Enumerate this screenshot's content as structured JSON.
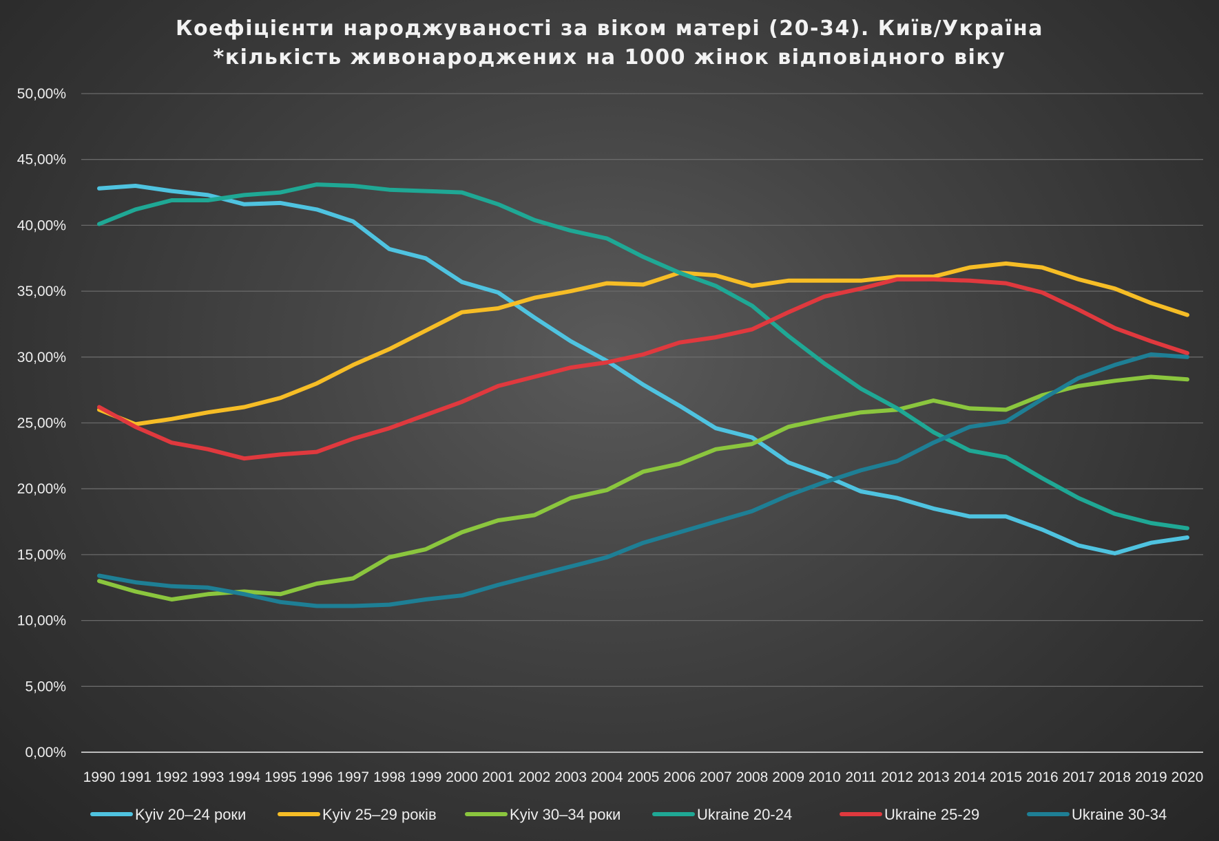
{
  "chart_data": {
    "type": "line",
    "title": "Коефіцієнти народжуваності за віком матері (20-34). Київ/Україна",
    "subtitle": "*кількість живонароджених на 1000 жінок відповідного віку",
    "xlabel": "",
    "ylabel": "",
    "ylim": [
      0,
      50
    ],
    "y_ticks": [
      "0,00%",
      "5,00%",
      "10,00%",
      "15,00%",
      "20,00%",
      "25,00%",
      "30,00%",
      "35,00%",
      "40,00%",
      "45,00%",
      "50,00%"
    ],
    "grid": true,
    "legend_position": "bottom",
    "categories": [
      "1990",
      "1991",
      "1992",
      "1993",
      "1994",
      "1995",
      "1996",
      "1997",
      "1998",
      "1999",
      "2000",
      "2001",
      "2002",
      "2003",
      "2004",
      "2005",
      "2006",
      "2007",
      "2008",
      "2009",
      "2010",
      "2011",
      "2012",
      "2013",
      "2014",
      "2015",
      "2016",
      "2017",
      "2018",
      "2019",
      "2020"
    ],
    "series": [
      {
        "name": "Kyiv 20–24 роки",
        "color": "#4fc3e0",
        "values": [
          42.8,
          43.0,
          42.6,
          42.3,
          41.6,
          41.7,
          41.2,
          40.3,
          38.2,
          37.5,
          35.7,
          34.9,
          33.0,
          31.2,
          29.7,
          27.9,
          26.3,
          24.6,
          23.9,
          22.0,
          21.0,
          19.8,
          19.3,
          18.5,
          17.9,
          17.9,
          16.9,
          15.7,
          15.1,
          15.9,
          16.3
        ]
      },
      {
        "name": "Kyiv 25–29 років",
        "color": "#f6bd26",
        "values": [
          26.0,
          24.9,
          25.3,
          25.8,
          26.2,
          26.9,
          28.0,
          29.4,
          30.6,
          32.0,
          33.4,
          33.7,
          34.5,
          35.0,
          35.6,
          35.5,
          36.4,
          36.2,
          35.4,
          35.8,
          35.8,
          35.8,
          36.1,
          36.1,
          36.8,
          37.1,
          36.8,
          35.9,
          35.2,
          34.1,
          33.2
        ]
      },
      {
        "name": "Kyiv 30–34 роки",
        "color": "#8bc63e",
        "values": [
          13.0,
          12.2,
          11.6,
          12.0,
          12.2,
          12.0,
          12.8,
          13.2,
          14.8,
          15.4,
          16.7,
          17.6,
          18.0,
          19.3,
          19.9,
          21.3,
          21.9,
          23.0,
          23.4,
          24.7,
          25.3,
          25.8,
          26.0,
          26.7,
          26.1,
          26.0,
          27.1,
          27.8,
          28.2,
          28.5,
          28.3
        ]
      },
      {
        "name": "Ukraine 20-24",
        "color": "#1fa895",
        "values": [
          40.1,
          41.2,
          41.9,
          41.9,
          42.3,
          42.5,
          43.1,
          43.0,
          42.7,
          42.6,
          42.5,
          41.6,
          40.4,
          39.6,
          39.0,
          37.6,
          36.4,
          35.4,
          33.9,
          31.6,
          29.5,
          27.6,
          26.1,
          24.3,
          22.9,
          22.4,
          20.8,
          19.3,
          18.1,
          17.4,
          17.0
        ]
      },
      {
        "name": "Ukraine 25-29",
        "color": "#e0393e",
        "values": [
          26.2,
          24.7,
          23.5,
          23.0,
          22.3,
          22.6,
          22.8,
          23.8,
          24.6,
          25.6,
          26.6,
          27.8,
          28.5,
          29.2,
          29.6,
          30.2,
          31.1,
          31.5,
          32.1,
          33.4,
          34.6,
          35.2,
          35.9,
          35.9,
          35.8,
          35.6,
          34.9,
          33.6,
          32.2,
          31.2,
          30.3
        ]
      },
      {
        "name": "Ukraine 30-34",
        "color": "#1e7f95",
        "values": [
          13.4,
          12.9,
          12.6,
          12.5,
          12.0,
          11.4,
          11.1,
          11.1,
          11.2,
          11.6,
          11.9,
          12.7,
          13.4,
          14.1,
          14.8,
          15.9,
          16.7,
          17.5,
          18.3,
          19.5,
          20.5,
          21.4,
          22.1,
          23.5,
          24.7,
          25.1,
          26.8,
          28.4,
          29.4,
          30.2,
          30.0
        ]
      }
    ]
  }
}
